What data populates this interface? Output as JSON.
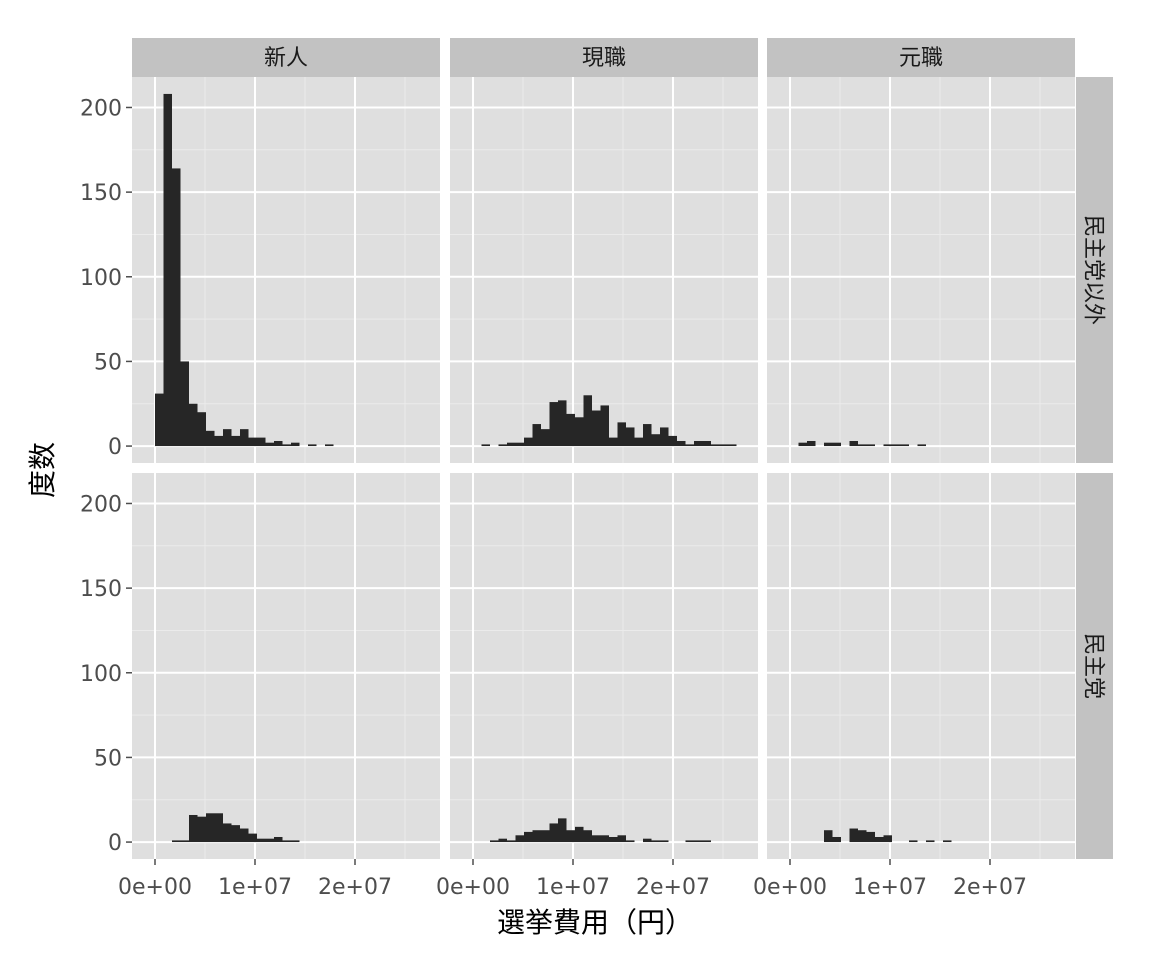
{
  "chart_data": {
    "type": "bar",
    "subtype": "faceted-histogram",
    "xlabel": "選挙費用（円）",
    "ylabel": "度数",
    "xlim": [
      -2300000,
      28500000
    ],
    "ylim": [
      -10,
      218
    ],
    "x_ticks": [
      0,
      10000000,
      20000000
    ],
    "x_tick_labels": [
      "0e+00",
      "1e+07",
      "2e+07"
    ],
    "y_ticks": [
      0,
      50,
      100,
      150,
      200
    ],
    "y_tick_labels": [
      "0",
      "50",
      "100",
      "150",
      "200"
    ],
    "bin_width": 850000,
    "bin_start": 0,
    "grid": true,
    "columns": [
      "新人",
      "現職",
      "元職"
    ],
    "rows": [
      "民主党以外",
      "民主党"
    ],
    "series": [
      {
        "row": 0,
        "col": 0,
        "values": [
          31,
          208,
          164,
          50,
          25,
          20,
          9,
          6,
          10,
          6,
          10,
          5,
          5,
          2,
          3,
          1,
          2,
          0,
          1,
          0,
          1,
          0,
          0,
          0,
          0,
          0,
          0,
          0,
          0,
          0,
          0,
          0,
          0
        ]
      },
      {
        "row": 0,
        "col": 1,
        "values": [
          0,
          1,
          0,
          1,
          2,
          2,
          5,
          13,
          10,
          26,
          27,
          19,
          17,
          30,
          21,
          24,
          5,
          14,
          11,
          5,
          13,
          7,
          11,
          6,
          3,
          1,
          3,
          3,
          1,
          1,
          1,
          0,
          0
        ]
      },
      {
        "row": 0,
        "col": 2,
        "values": [
          0,
          2,
          3,
          0,
          2,
          2,
          0,
          3,
          1,
          1,
          0,
          1,
          1,
          1,
          0,
          1,
          0,
          0,
          0,
          0,
          0,
          0,
          0,
          0,
          0,
          0,
          0,
          0,
          0,
          0,
          0,
          0,
          0
        ]
      },
      {
        "row": 1,
        "col": 0,
        "values": [
          0,
          0,
          1,
          1,
          16,
          15,
          17,
          17,
          11,
          10,
          8,
          5,
          2,
          2,
          3,
          1,
          1,
          0,
          0,
          0,
          0,
          0,
          0,
          0,
          0,
          0,
          0,
          0,
          0,
          0,
          0,
          0,
          0
        ]
      },
      {
        "row": 1,
        "col": 1,
        "values": [
          0,
          0,
          1,
          2,
          1,
          4,
          6,
          7,
          7,
          11,
          14,
          7,
          9,
          7,
          4,
          4,
          3,
          4,
          1,
          0,
          2,
          1,
          1,
          0,
          0,
          1,
          1,
          1,
          0,
          0,
          0,
          0,
          0
        ]
      },
      {
        "row": 1,
        "col": 2,
        "values": [
          0,
          0,
          0,
          0,
          7,
          3,
          0,
          8,
          7,
          6,
          3,
          4,
          0,
          0,
          1,
          0,
          1,
          0,
          1,
          0,
          0,
          0,
          0,
          0,
          0,
          0,
          0,
          0,
          0,
          0,
          0,
          0,
          0
        ]
      }
    ]
  },
  "colors": {
    "panel_bg": "#dfdfdf",
    "strip_bg": "#c2c2c2",
    "grid_major": "#ffffff",
    "grid_minor": "#ebebeb",
    "bar_fill": "#262626"
  }
}
